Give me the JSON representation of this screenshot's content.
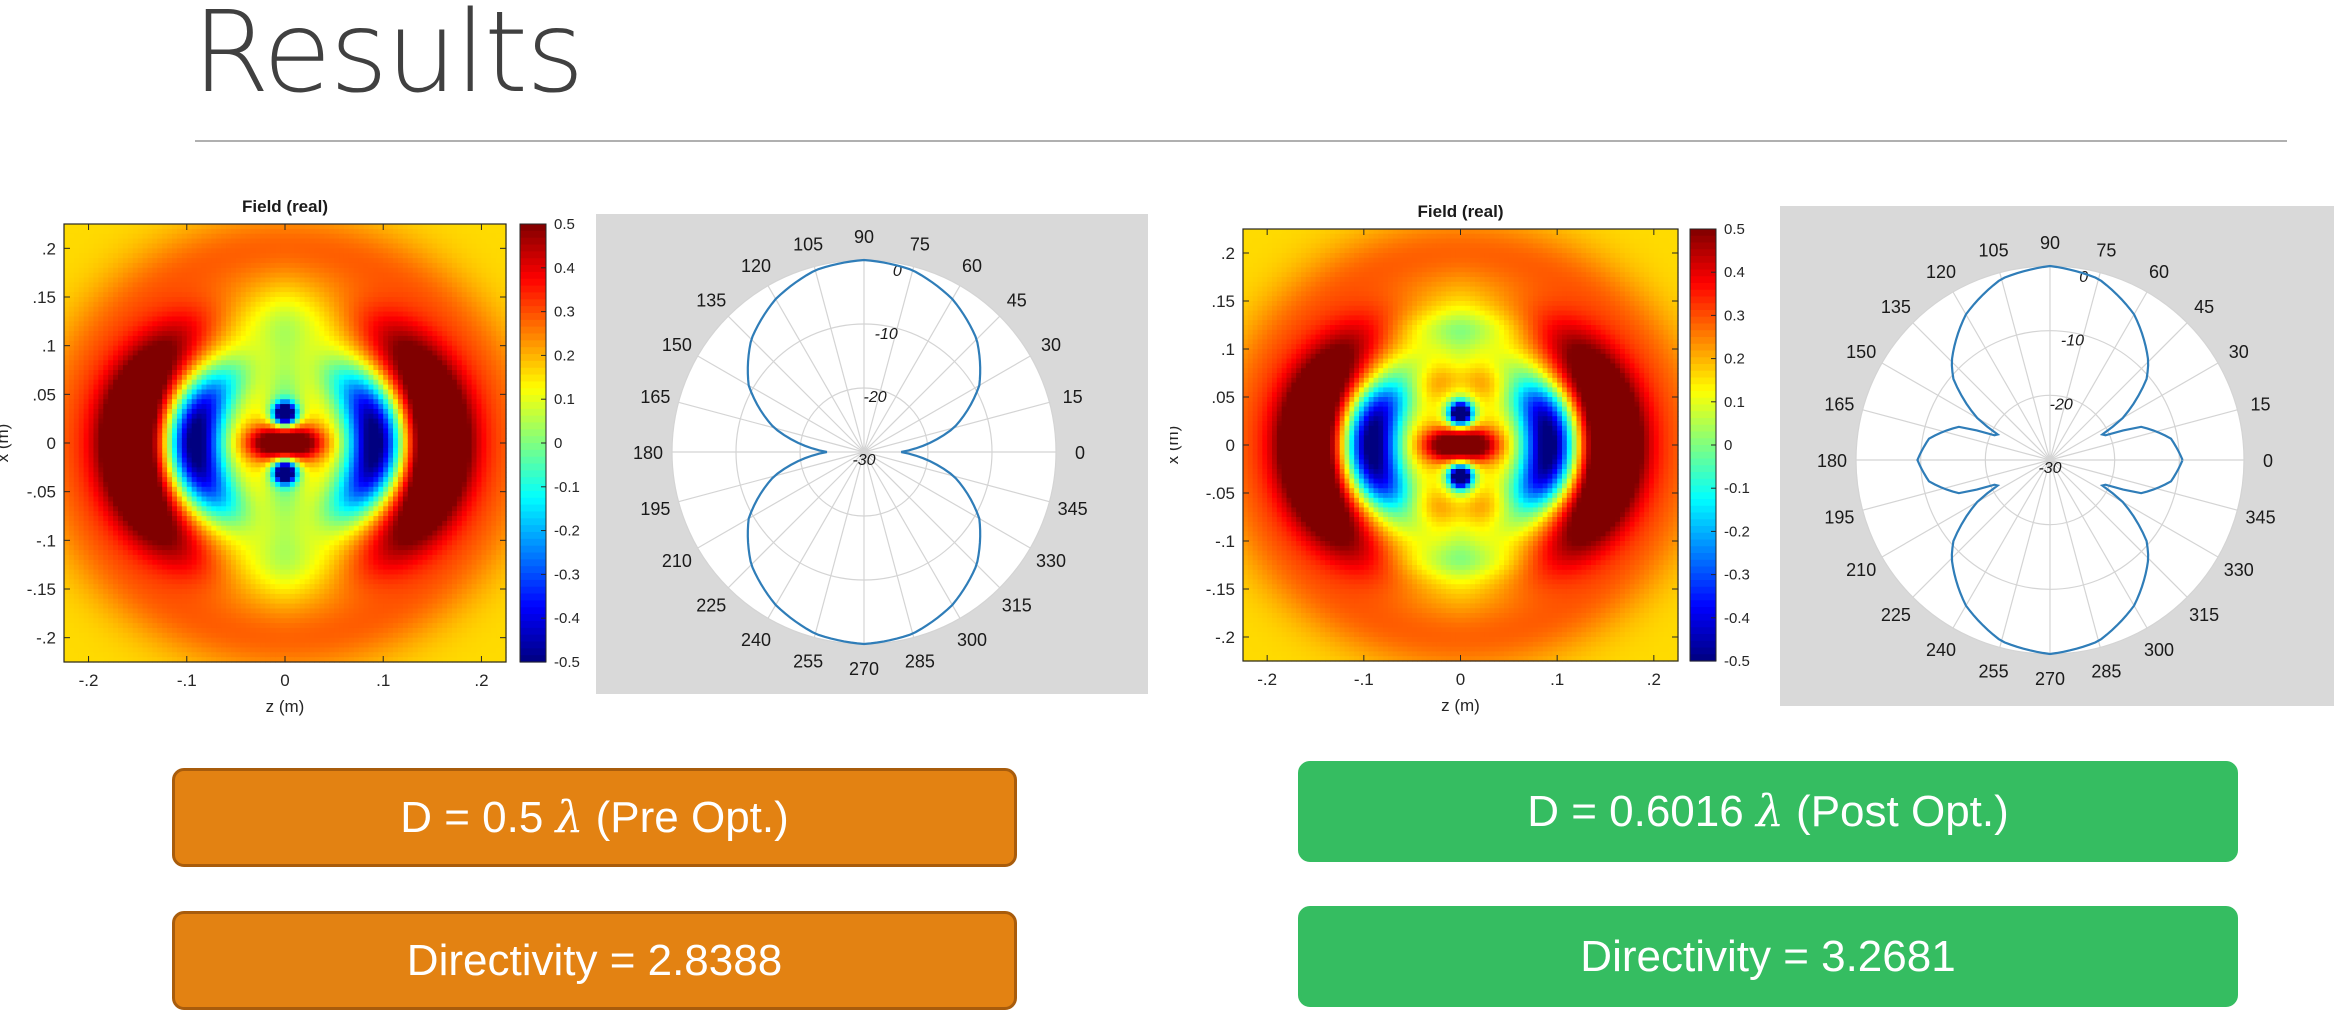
{
  "slide": {
    "title": "Results"
  },
  "colors": {
    "orange": "#e38212",
    "green": "#35bd61",
    "polar_line": "#2f7db8"
  },
  "boxes": {
    "pre_d": {
      "prefix": "D = 0.5 ",
      "symbol": "λ",
      "suffix": " (Pre Opt.)"
    },
    "pre_dir": {
      "text": "Directivity = 2.8388"
    },
    "post_d": {
      "prefix": "D = 0.6016 ",
      "symbol": "λ",
      "suffix": " (Post Opt.)"
    },
    "post_dir": {
      "text": "Directivity = 3.2681"
    }
  },
  "chart_data": [
    {
      "type": "heatmap",
      "title": "Field (real)",
      "xlabel": "z (m)",
      "ylabel": "x (m)",
      "xlim": [
        -0.225,
        0.225
      ],
      "ylim": [
        -0.225,
        0.225
      ],
      "xticks": [
        -0.2,
        -0.1,
        0,
        0.1,
        0.2
      ],
      "yticks": [
        0.2,
        0.15,
        0.1,
        0.05,
        0,
        -0.05,
        -0.1,
        -0.15,
        -0.2
      ],
      "colorbar": {
        "range": [
          -0.5,
          0.5
        ],
        "ticks": [
          0.5,
          0.4,
          0.3,
          0.2,
          0.1,
          0,
          -0.1,
          -0.2,
          -0.3,
          -0.4,
          -0.5
        ],
        "colormap": "jet"
      },
      "features": [
        {
          "label": "positive core",
          "z": 0,
          "x": 0,
          "value": 0.5
        },
        {
          "label": "negative lobes",
          "z": 0,
          "x": 0.03,
          "value": -0.5
        },
        {
          "label": "negative ring",
          "z": 0.09,
          "x": 0,
          "value": -0.25
        },
        {
          "label": "positive ring",
          "z": 0.145,
          "x": 0,
          "value": 0.35
        }
      ]
    },
    {
      "type": "line",
      "subtype": "polar",
      "angle_labels": [
        "0",
        "15",
        "30",
        "45",
        "60",
        "75",
        "90",
        "105",
        "120",
        "135",
        "150",
        "165",
        "180",
        "195",
        "210",
        "225",
        "240",
        "255",
        "270",
        "285",
        "300",
        "315",
        "330",
        "345"
      ],
      "radial_labels": [
        "0",
        "-10",
        "-20",
        "-30"
      ],
      "rlim": [
        -30,
        0
      ],
      "series": [
        {
          "angles_deg": [
            0,
            15,
            30,
            45,
            60,
            75,
            90,
            105,
            120,
            135,
            150,
            165,
            180
          ],
          "values_db": [
            -24.2,
            -15.5,
            -9.2,
            -5.1,
            -2.4,
            -0.6,
            0,
            -0.6,
            -2.4,
            -5.1,
            -9.2,
            -15.5,
            -24.2
          ]
        }
      ]
    },
    {
      "type": "heatmap",
      "title": "Field (real)",
      "xlabel": "z (m)",
      "ylabel": "x (m)",
      "xlim": [
        -0.225,
        0.225
      ],
      "ylim": [
        -0.225,
        0.225
      ],
      "xticks": [
        -0.2,
        -0.1,
        0,
        0.1,
        0.2
      ],
      "yticks": [
        0.2,
        0.15,
        0.1,
        0.05,
        0,
        -0.05,
        -0.1,
        -0.15,
        -0.2
      ],
      "colorbar": {
        "range": [
          -0.5,
          0.5
        ],
        "ticks": [
          0.5,
          0.4,
          0.3,
          0.2,
          0.1,
          0,
          -0.1,
          -0.2,
          -0.3,
          -0.4,
          -0.5
        ],
        "colormap": "jet"
      },
      "features": [
        {
          "label": "positive core",
          "z": 0,
          "x": 0,
          "value": 0.5
        },
        {
          "label": "negative lobes",
          "z": 0,
          "x": 0.033,
          "value": -0.5
        },
        {
          "label": "negative ring",
          "z": 0.09,
          "x": 0,
          "value": -0.25
        },
        {
          "label": "positive ring",
          "z": 0.145,
          "x": 0,
          "value": 0.35
        },
        {
          "label": "positive bands top/bottom",
          "z": 0,
          "x": 0.09,
          "value": 0.1
        }
      ]
    },
    {
      "type": "line",
      "subtype": "polar",
      "angle_labels": [
        "0",
        "15",
        "30",
        "45",
        "60",
        "75",
        "90",
        "105",
        "120",
        "135",
        "150",
        "165",
        "180",
        "195",
        "210",
        "225",
        "240",
        "255",
        "270",
        "285",
        "300",
        "315",
        "330",
        "345"
      ],
      "radial_labels": [
        "0",
        "-10",
        "-20",
        "-30"
      ],
      "rlim": [
        -30,
        0
      ],
      "series": [
        {
          "angles_deg": [
            0,
            10,
            20,
            25,
            30,
            40,
            45,
            60,
            75,
            90,
            105,
            120,
            135,
            140,
            150,
            155,
            160,
            170,
            180
          ],
          "values_db": [
            -9.5,
            -11,
            -15,
            -22,
            -17,
            -10.5,
            -8.5,
            -4,
            -1,
            0,
            -1,
            -4,
            -8.5,
            -10.5,
            -17,
            -22,
            -15,
            -11,
            -9.5
          ]
        }
      ]
    }
  ]
}
